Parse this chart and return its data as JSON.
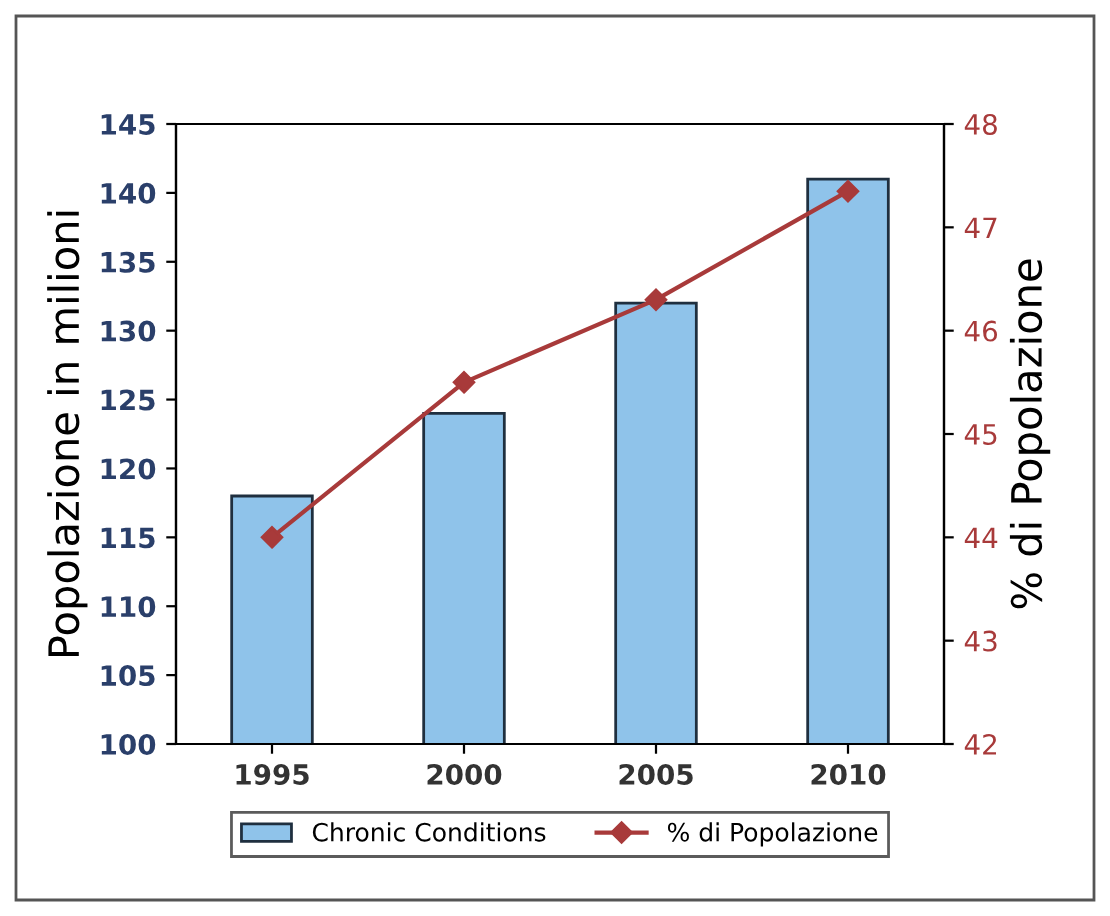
{
  "chart_data": {
    "type": "bar",
    "ylabel": "Popolazione in milioni",
    "y2label": "% di Popolazione",
    "categories": [
      "1995",
      "2000",
      "2005",
      "2010"
    ],
    "series": [
      {
        "name": "Chronic Conditions",
        "color": "#8fc3ea",
        "values": [
          118,
          124,
          132,
          141
        ]
      },
      {
        "name": "% di Popolazione",
        "type": "line",
        "axis": "y2",
        "color": "#a83a3a",
        "marker": "diamond",
        "values": [
          44,
          45.5,
          46.3,
          47.35
        ]
      }
    ],
    "ylim": [
      100,
      145
    ],
    "yticks": [
      100,
      105,
      110,
      115,
      120,
      125,
      130,
      135,
      140,
      145
    ],
    "y2lim": [
      42,
      48
    ],
    "y2ticks": [
      42,
      43,
      44,
      45,
      46,
      47,
      48
    ],
    "grid": false,
    "legend": "bottom"
  }
}
